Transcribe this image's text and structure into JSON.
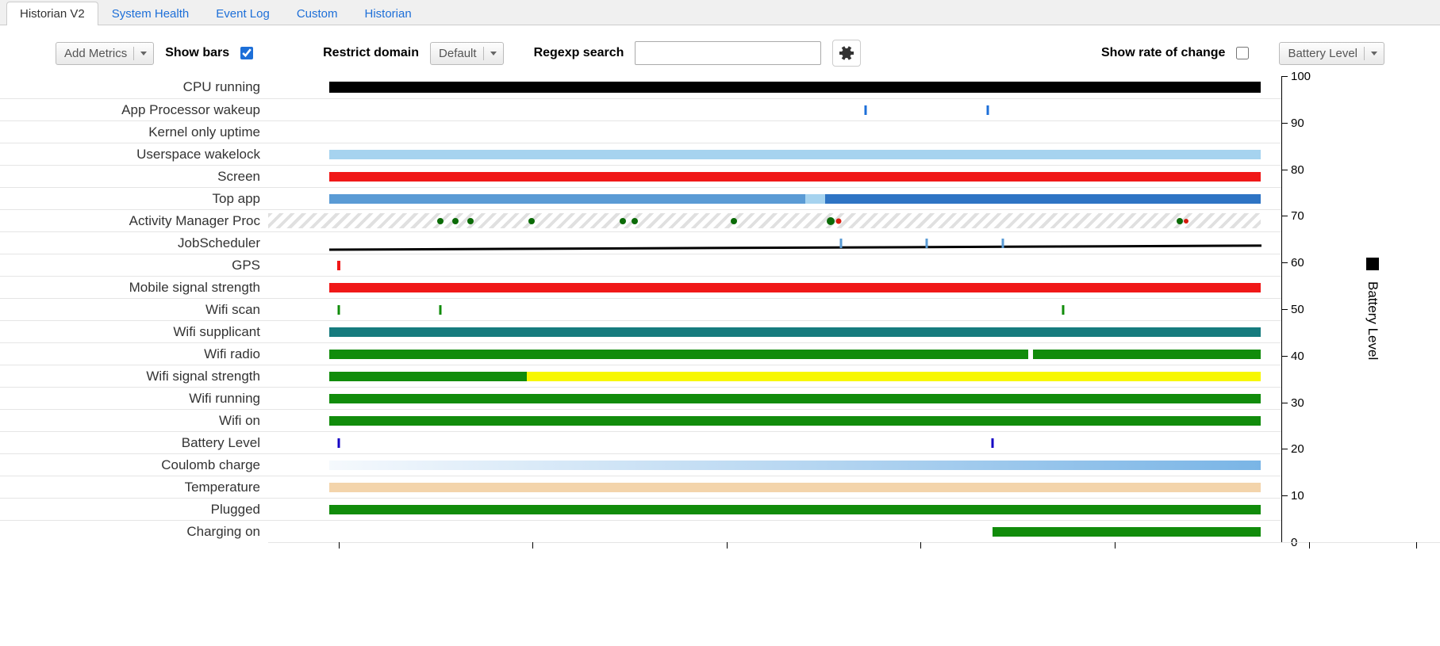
{
  "tabs": [
    {
      "label": "Historian V2",
      "active": true
    },
    {
      "label": "System Health",
      "active": false
    },
    {
      "label": "Event Log",
      "active": false
    },
    {
      "label": "Custom",
      "active": false
    },
    {
      "label": "Historian",
      "active": false
    }
  ],
  "toolbar": {
    "add_metrics": "Add Metrics",
    "show_bars_label": "Show bars",
    "show_bars_checked": true,
    "restrict_domain_label": "Restrict domain",
    "domain_value": "Default",
    "regexp_label": "Regexp search",
    "regexp_value": "",
    "rate_label": "Show rate of change",
    "rate_checked": false,
    "series_select": "Battery Level"
  },
  "colors": {
    "black": "#000000",
    "blue_tick": "#1d6fd8",
    "lightblue": "#a6d3ef",
    "red": "#f01818",
    "midblue": "#5a9bd5",
    "darkblue": "#2e74c4",
    "green": "#118c0b",
    "dark_green": "#0b6b07",
    "teal": "#167b7e",
    "yellow": "#f7f700",
    "purple_tick": "#1500c4",
    "pale_blue_grad_start": "#f5f9fd",
    "pale_blue_grad_end": "#7ab5e6",
    "tan": "#f3d4ab",
    "red_dot": "#d61c0f"
  },
  "yaxis": {
    "min": 0,
    "max": 100,
    "step": 10,
    "title": "Battery Level"
  },
  "xticks_pct": [
    0,
    18,
    36,
    54,
    72,
    90,
    100
  ],
  "rows": [
    {
      "label": "CPU running",
      "segments": [
        {
          "type": "seg",
          "start": 6,
          "end": 98,
          "color": "black",
          "h": 14
        }
      ]
    },
    {
      "label": "App Processor wakeup",
      "segments": [
        {
          "type": "tick",
          "pos": 59,
          "color": "blue_tick"
        },
        {
          "type": "tick",
          "pos": 71,
          "color": "blue_tick"
        }
      ]
    },
    {
      "label": "Kernel only uptime",
      "segments": []
    },
    {
      "label": "Userspace wakelock",
      "segments": [
        {
          "type": "seg",
          "start": 6,
          "end": 98,
          "color": "lightblue"
        }
      ]
    },
    {
      "label": "Screen",
      "segments": [
        {
          "type": "seg",
          "start": 6,
          "end": 98,
          "color": "red"
        }
      ]
    },
    {
      "label": "Top app",
      "segments": [
        {
          "type": "seg",
          "start": 6,
          "end": 53,
          "color": "midblue"
        },
        {
          "type": "seg",
          "start": 53,
          "end": 55,
          "color": "lightblue"
        },
        {
          "type": "seg",
          "start": 55,
          "end": 98,
          "color": "darkblue"
        }
      ]
    },
    {
      "label": "Activity Manager Proc",
      "hatched": true,
      "segments": [
        {
          "type": "dot",
          "pos": 17,
          "color": "dark_green"
        },
        {
          "type": "dot",
          "pos": 18.5,
          "color": "dark_green"
        },
        {
          "type": "dot",
          "pos": 20,
          "color": "dark_green"
        },
        {
          "type": "dot",
          "pos": 26,
          "color": "dark_green"
        },
        {
          "type": "dot",
          "pos": 35,
          "color": "dark_green"
        },
        {
          "type": "dot",
          "pos": 36.2,
          "color": "dark_green"
        },
        {
          "type": "dot",
          "pos": 46,
          "color": "dark_green"
        },
        {
          "type": "dot",
          "pos": 55.5,
          "color": "dark_green",
          "size": 10
        },
        {
          "type": "dot",
          "pos": 56.3,
          "color": "red_dot",
          "size": 7
        },
        {
          "type": "dot",
          "pos": 90,
          "color": "dark_green"
        },
        {
          "type": "dot",
          "pos": 90.6,
          "color": "red_dot",
          "size": 6
        }
      ]
    },
    {
      "label": "JobScheduler",
      "slope": true,
      "segments": [
        {
          "type": "tick",
          "pos": 56.5,
          "color": "midblue"
        },
        {
          "type": "tick",
          "pos": 65,
          "color": "midblue"
        },
        {
          "type": "tick",
          "pos": 72.5,
          "color": "midblue"
        }
      ]
    },
    {
      "label": "GPS",
      "segments": [
        {
          "type": "tick",
          "pos": 7,
          "color": "red",
          "w": 4
        }
      ]
    },
    {
      "label": "Mobile signal strength",
      "segments": [
        {
          "type": "seg",
          "start": 6,
          "end": 98,
          "color": "red"
        }
      ]
    },
    {
      "label": "Wifi scan",
      "segments": [
        {
          "type": "tick",
          "pos": 7,
          "color": "green"
        },
        {
          "type": "tick",
          "pos": 17,
          "color": "green"
        },
        {
          "type": "tick",
          "pos": 78.5,
          "color": "green"
        }
      ]
    },
    {
      "label": "Wifi supplicant",
      "segments": [
        {
          "type": "seg",
          "start": 6,
          "end": 98,
          "color": "teal"
        }
      ]
    },
    {
      "label": "Wifi radio",
      "segments": [
        {
          "type": "seg",
          "start": 6,
          "end": 75,
          "color": "green"
        },
        {
          "type": "seg",
          "start": 75.5,
          "end": 98,
          "color": "green"
        }
      ]
    },
    {
      "label": "Wifi signal strength",
      "segments": [
        {
          "type": "seg",
          "start": 6,
          "end": 25.5,
          "color": "green"
        },
        {
          "type": "seg",
          "start": 25.5,
          "end": 98,
          "color": "yellow"
        }
      ]
    },
    {
      "label": "Wifi running",
      "segments": [
        {
          "type": "seg",
          "start": 6,
          "end": 98,
          "color": "green"
        }
      ]
    },
    {
      "label": "Wifi on",
      "segments": [
        {
          "type": "seg",
          "start": 6,
          "end": 98,
          "color": "green"
        }
      ]
    },
    {
      "label": "Battery Level",
      "segments": [
        {
          "type": "tick",
          "pos": 7,
          "color": "purple_tick",
          "w": 3
        },
        {
          "type": "tick",
          "pos": 71.5,
          "color": "purple_tick",
          "w": 3
        }
      ]
    },
    {
      "label": "Coulomb charge",
      "segments": [
        {
          "type": "grad",
          "start": 6,
          "end": 98,
          "from": "pale_blue_grad_start",
          "to": "pale_blue_grad_end"
        }
      ]
    },
    {
      "label": "Temperature",
      "segments": [
        {
          "type": "seg",
          "start": 6,
          "end": 98,
          "color": "tan"
        }
      ]
    },
    {
      "label": "Plugged",
      "segments": [
        {
          "type": "seg",
          "start": 6,
          "end": 98,
          "color": "green"
        }
      ]
    },
    {
      "label": "Charging on",
      "segments": [
        {
          "type": "seg",
          "start": 71.5,
          "end": 98,
          "color": "green"
        }
      ]
    }
  ]
}
